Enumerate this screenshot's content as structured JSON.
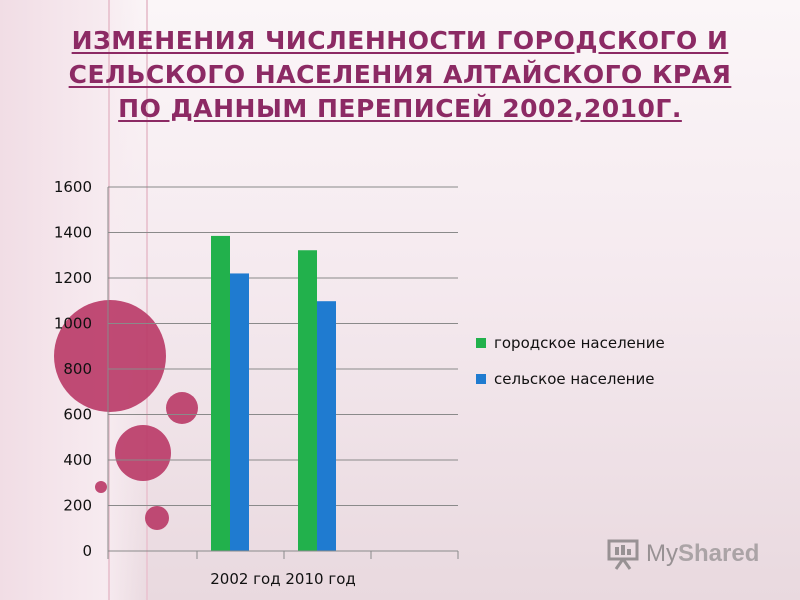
{
  "title": "ИЗМЕНЕНИЯ ЧИСЛЕННОСТИ ГОРОДСКОГО И СЕЛЬСКОГО НАСЕЛЕНИЯ АЛТАЙСКОГО КРАЯ ПО ДАННЫМ ПЕРЕПИСЕЙ 2002,2010Г.",
  "legend": [
    {
      "label": "городское население",
      "color": "#22b14c"
    },
    {
      "label": "сельское население",
      "color": "#1f7bd0"
    }
  ],
  "watermark": {
    "text_my": "My",
    "text_rest": "Shared"
  },
  "colors": {
    "title": "#8c2a64",
    "bubbles": "#b93866"
  },
  "chart_data": {
    "type": "bar",
    "categories": [
      "2002 год",
      "2010 год"
    ],
    "series": [
      {
        "name": "городское население",
        "color": "#22b14c",
        "values": [
          1385,
          1322
        ]
      },
      {
        "name": "сельское население",
        "color": "#1f7bd0",
        "values": [
          1220,
          1098
        ]
      }
    ],
    "ylim": [
      0,
      1600
    ],
    "yticks": [
      0,
      200,
      400,
      600,
      800,
      1000,
      1200,
      1400,
      1600
    ],
    "grid": true,
    "legend_position": "right"
  }
}
